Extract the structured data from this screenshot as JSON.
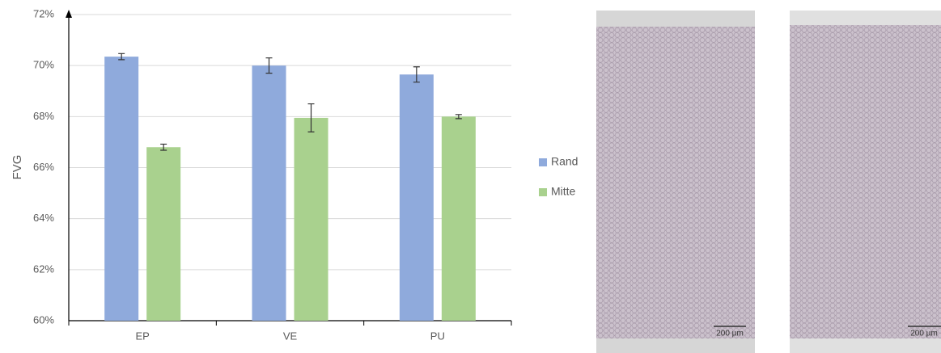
{
  "chart_data": {
    "type": "bar",
    "y_label": "FVG",
    "categories": [
      "EP",
      "VE",
      "PU"
    ],
    "series": [
      {
        "name": "Rand",
        "color": "#8faadc",
        "values": [
          70.35,
          70.0,
          69.65
        ],
        "errors": [
          0.12,
          0.3,
          0.3
        ]
      },
      {
        "name": "Mitte",
        "color": "#a9d18e",
        "values": [
          66.8,
          67.95,
          68.0
        ],
        "errors": [
          0.12,
          0.55,
          0.08
        ]
      }
    ],
    "ylim": [
      60,
      72
    ],
    "yticks": [
      {
        "value": 60,
        "label": "60%"
      },
      {
        "value": 62,
        "label": "62%"
      },
      {
        "value": 64,
        "label": "64%"
      },
      {
        "value": 66,
        "label": "66%"
      },
      {
        "value": 68,
        "label": "68%"
      },
      {
        "value": 70,
        "label": "70%"
      },
      {
        "value": 72,
        "label": "72%"
      }
    ],
    "grid": true,
    "legend": "right"
  },
  "images": [
    {
      "scale_label": "200 µm"
    },
    {
      "scale_label": "200 µm"
    }
  ]
}
